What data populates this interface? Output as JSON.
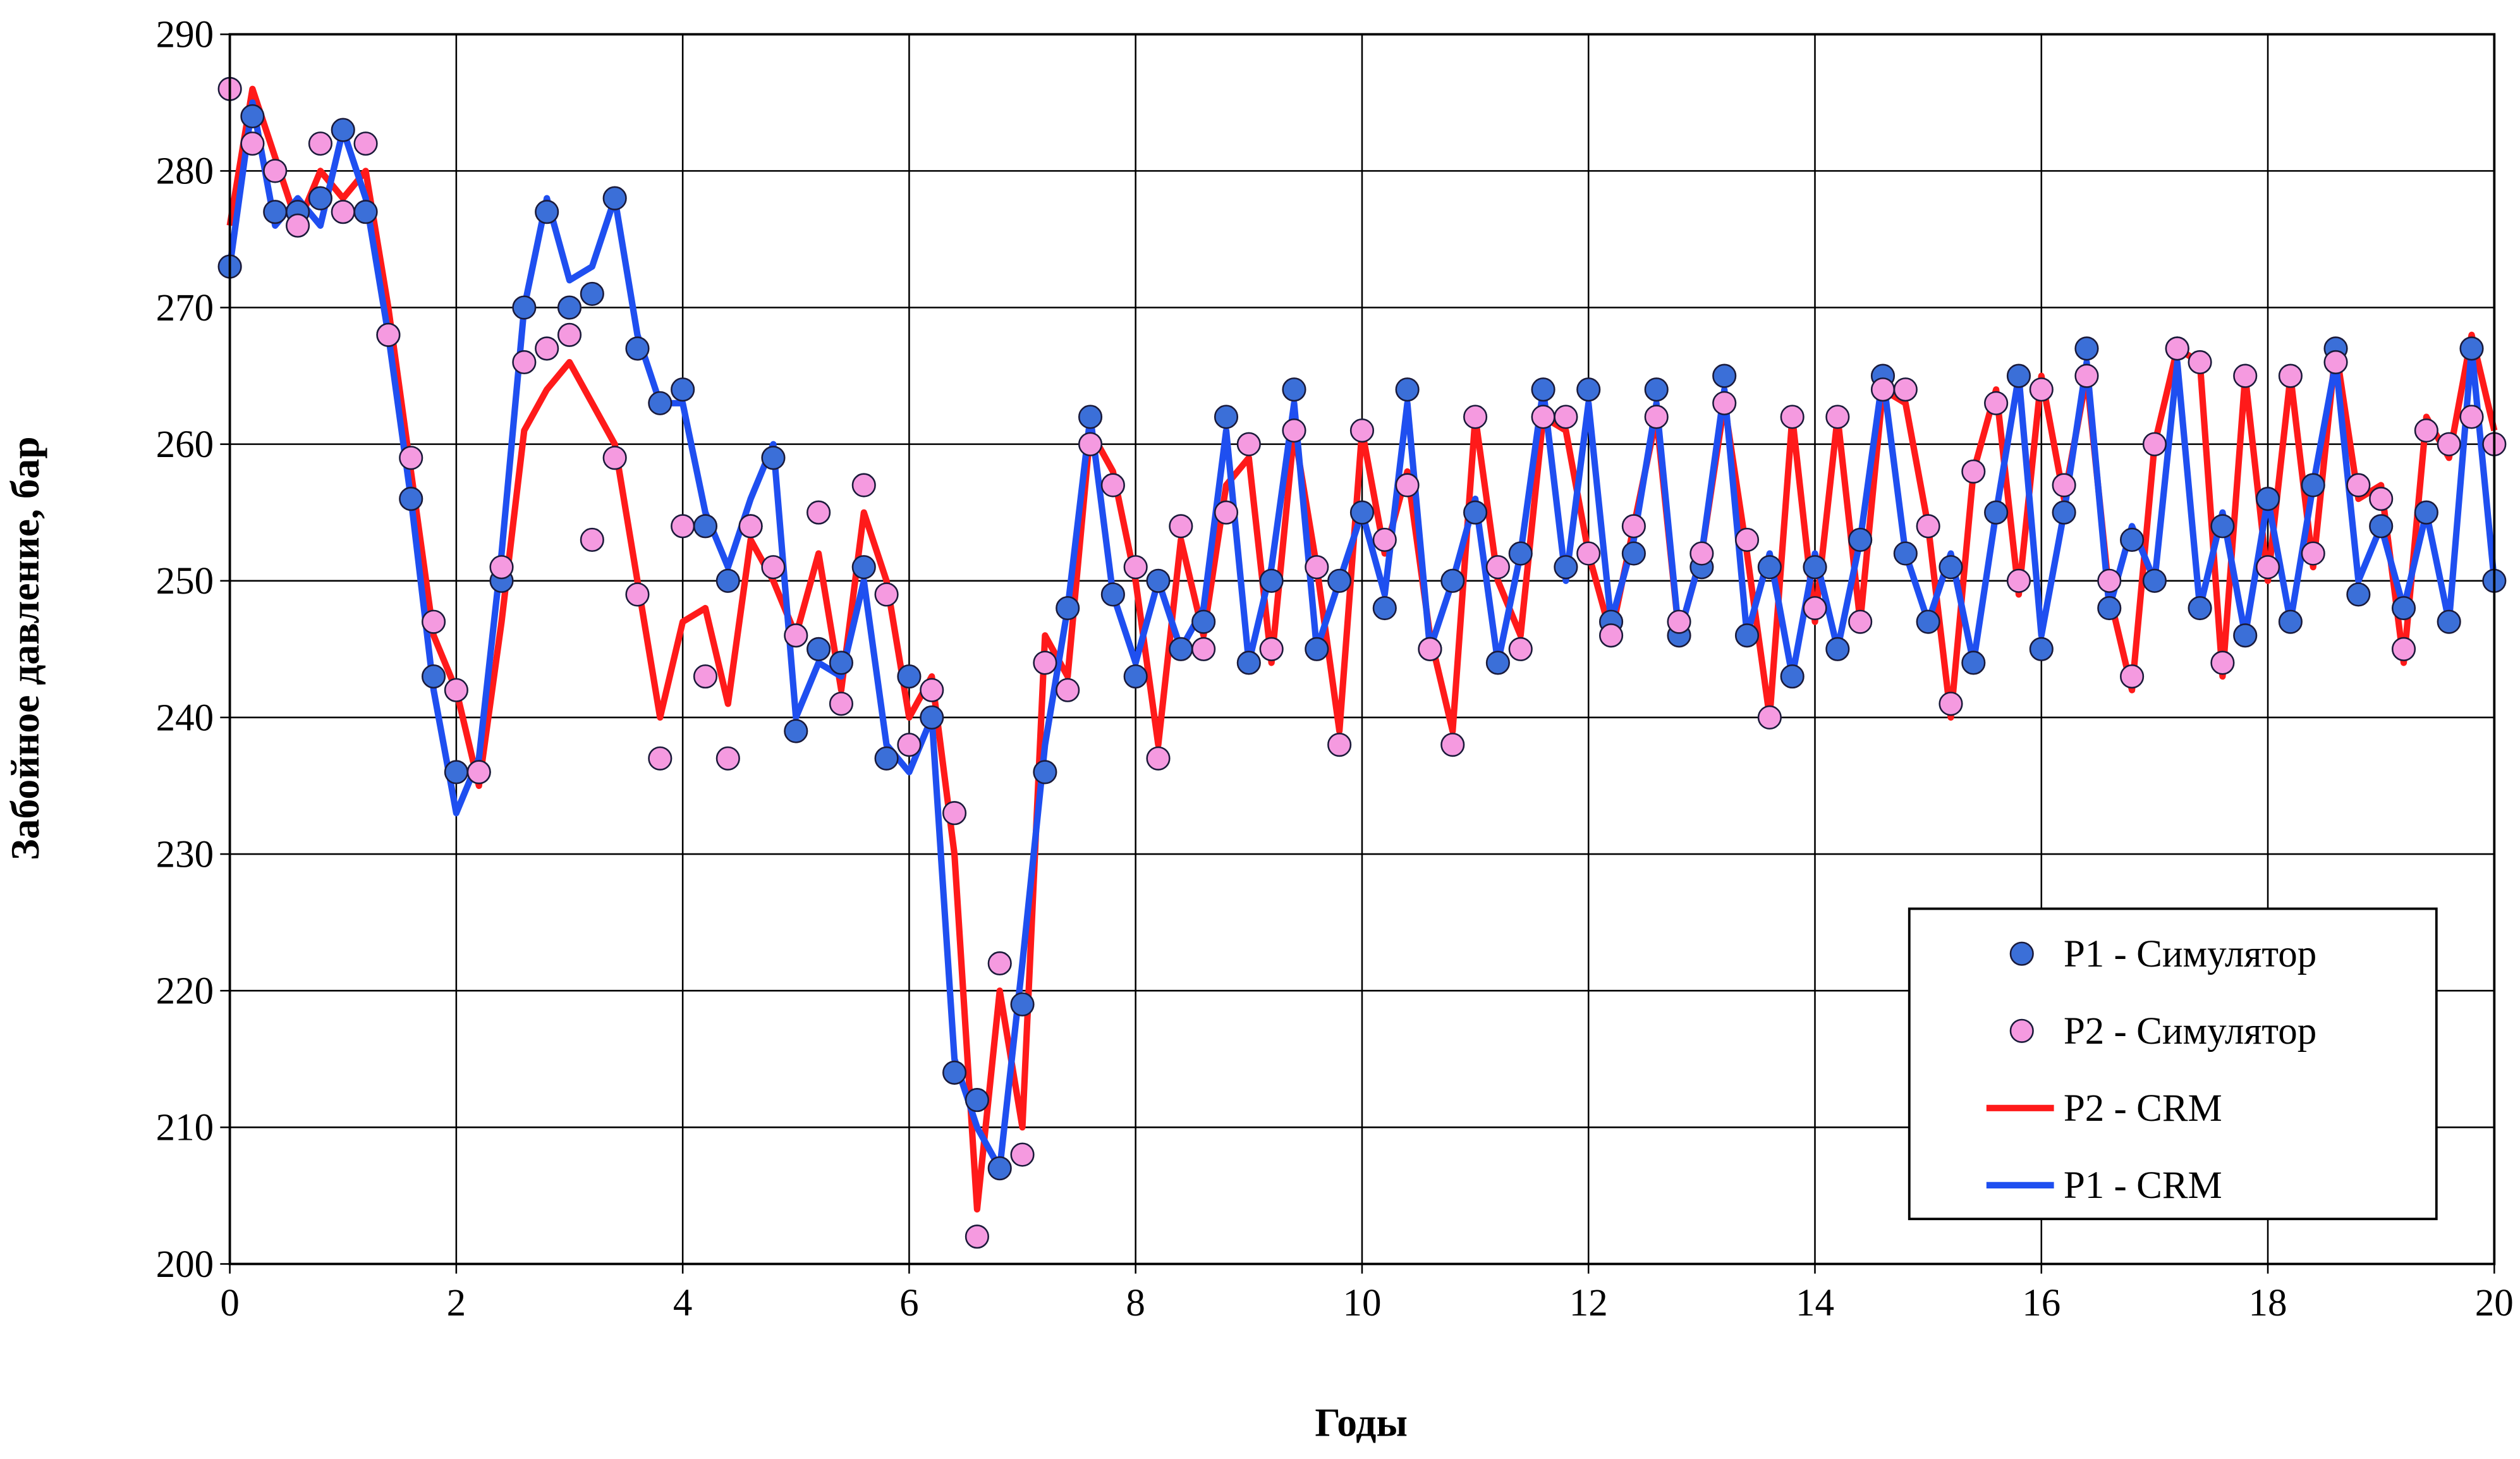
{
  "chart_data": {
    "type": "line",
    "x_label": "Годы",
    "y_label": "Забойное давление, бар",
    "xlim": [
      0,
      20
    ],
    "xticks": [
      0,
      2,
      4,
      6,
      8,
      10,
      12,
      14,
      16,
      18,
      20
    ],
    "ylim": [
      200,
      290
    ],
    "yticks": [
      200,
      210,
      220,
      230,
      240,
      250,
      260,
      270,
      280,
      290
    ],
    "grid": true,
    "legend": "lower right",
    "x": [
      0,
      0.2,
      0.4,
      0.6,
      0.8,
      1,
      1.2,
      1.4,
      1.6,
      1.8,
      2,
      2.2,
      2.4,
      2.6,
      2.8,
      3,
      3.2,
      3.4,
      3.6,
      3.8,
      4,
      4.2,
      4.4,
      4.6,
      4.8,
      5,
      5.2,
      5.4,
      5.6,
      5.8,
      6,
      6.2,
      6.4,
      6.6,
      6.8,
      7,
      7.2,
      7.4,
      7.6,
      7.8,
      8,
      8.2,
      8.4,
      8.6,
      8.8,
      9,
      9.2,
      9.4,
      9.6,
      9.8,
      10,
      10.2,
      10.4,
      10.6,
      10.8,
      11,
      11.2,
      11.4,
      11.6,
      11.8,
      12,
      12.2,
      12.4,
      12.6,
      12.8,
      13,
      13.2,
      13.4,
      13.6,
      13.8,
      14,
      14.2,
      14.4,
      14.6,
      14.8,
      15,
      15.2,
      15.4,
      15.6,
      15.8,
      16,
      16.2,
      16.4,
      16.6,
      16.8,
      17,
      17.2,
      17.4,
      17.6,
      17.8,
      18,
      18.2,
      18.4,
      18.6,
      18.8,
      19,
      19.2,
      19.4,
      19.6,
      19.8,
      20
    ],
    "series": [
      {
        "name": "P2 - CRM",
        "mode": "line",
        "color": "#ff1a1a",
        "values": [
          276,
          286,
          281,
          276,
          280,
          278,
          280,
          270,
          258,
          246,
          242,
          235,
          247,
          261,
          264,
          266,
          263,
          260,
          250,
          240,
          247,
          248,
          241,
          253,
          250,
          246,
          252,
          242,
          255,
          250,
          240,
          243,
          230,
          204,
          220,
          210,
          246,
          243,
          261,
          258,
          250,
          238,
          253,
          246,
          257,
          259,
          244,
          261,
          251,
          239,
          261,
          252,
          258,
          246,
          239,
          262,
          250,
          246,
          262,
          261,
          252,
          246,
          254,
          262,
          246,
          252,
          263,
          252,
          240,
          262,
          247,
          262,
          247,
          264,
          263,
          254,
          240,
          258,
          264,
          249,
          265,
          256,
          265,
          249,
          242,
          260,
          267,
          266,
          243,
          265,
          250,
          265,
          251,
          267,
          256,
          257,
          244,
          262,
          259,
          268,
          261
        ]
      },
      {
        "name": "P1 - CRM",
        "mode": "line",
        "color": "#1f4ff0",
        "values": [
          273,
          285,
          276,
          278,
          276,
          283,
          278,
          268,
          256,
          242,
          233,
          237,
          252,
          270,
          278,
          272,
          273,
          278,
          268,
          263,
          263,
          255,
          251,
          256,
          260,
          240,
          244,
          243,
          250,
          238,
          236,
          240,
          215,
          210,
          207,
          222,
          238,
          248,
          262,
          249,
          244,
          250,
          245,
          248,
          261,
          244,
          251,
          263,
          245,
          250,
          255,
          249,
          263,
          245,
          250,
          256,
          244,
          252,
          264,
          250,
          263,
          247,
          253,
          263,
          246,
          252,
          264,
          246,
          252,
          243,
          252,
          245,
          253,
          265,
          252,
          247,
          252,
          244,
          255,
          265,
          246,
          255,
          266,
          248,
          254,
          250,
          266,
          248,
          255,
          246,
          256,
          247,
          257,
          266,
          250,
          254,
          248,
          255,
          247,
          267,
          250
        ]
      },
      {
        "name": "P1 - Симулятор",
        "mode": "markers",
        "color": "#3b6fd8",
        "values": [
          273,
          284,
          277,
          277,
          278,
          283,
          277,
          268,
          256,
          243,
          236,
          236,
          250,
          270,
          277,
          270,
          271,
          278,
          267,
          263,
          264,
          254,
          250,
          254,
          259,
          239,
          245,
          244,
          251,
          237,
          243,
          240,
          214,
          212,
          207,
          219,
          236,
          248,
          262,
          249,
          243,
          250,
          245,
          247,
          262,
          244,
          250,
          264,
          245,
          250,
          255,
          248,
          264,
          245,
          250,
          255,
          244,
          252,
          264,
          251,
          264,
          247,
          252,
          264,
          246,
          251,
          265,
          246,
          251,
          243,
          251,
          245,
          253,
          265,
          252,
          247,
          251,
          244,
          255,
          265,
          245,
          255,
          267,
          248,
          253,
          250,
          267,
          248,
          254,
          246,
          256,
          247,
          257,
          267,
          249,
          254,
          248,
          255,
          247,
          267,
          250
        ]
      },
      {
        "name": "P2 - Симулятор",
        "mode": "markers",
        "color": "#f59ae0",
        "values": [
          286,
          282,
          280,
          276,
          282,
          277,
          282,
          268,
          259,
          247,
          242,
          236,
          251,
          266,
          267,
          268,
          253,
          259,
          249,
          237,
          254,
          243,
          237,
          254,
          251,
          246,
          255,
          241,
          257,
          249,
          238,
          242,
          233,
          202,
          222,
          208,
          244,
          242,
          260,
          257,
          251,
          237,
          254,
          245,
          255,
          260,
          245,
          261,
          251,
          238,
          261,
          253,
          257,
          245,
          238,
          262,
          251,
          245,
          262,
          262,
          252,
          246,
          254,
          262,
          247,
          252,
          263,
          253,
          240,
          262,
          248,
          262,
          247,
          264,
          264,
          254,
          241,
          258,
          263,
          250,
          264,
          257,
          265,
          250,
          243,
          260,
          267,
          266,
          244,
          265,
          251,
          265,
          252,
          266,
          257,
          256,
          245,
          261,
          260,
          262,
          260
        ]
      }
    ]
  }
}
